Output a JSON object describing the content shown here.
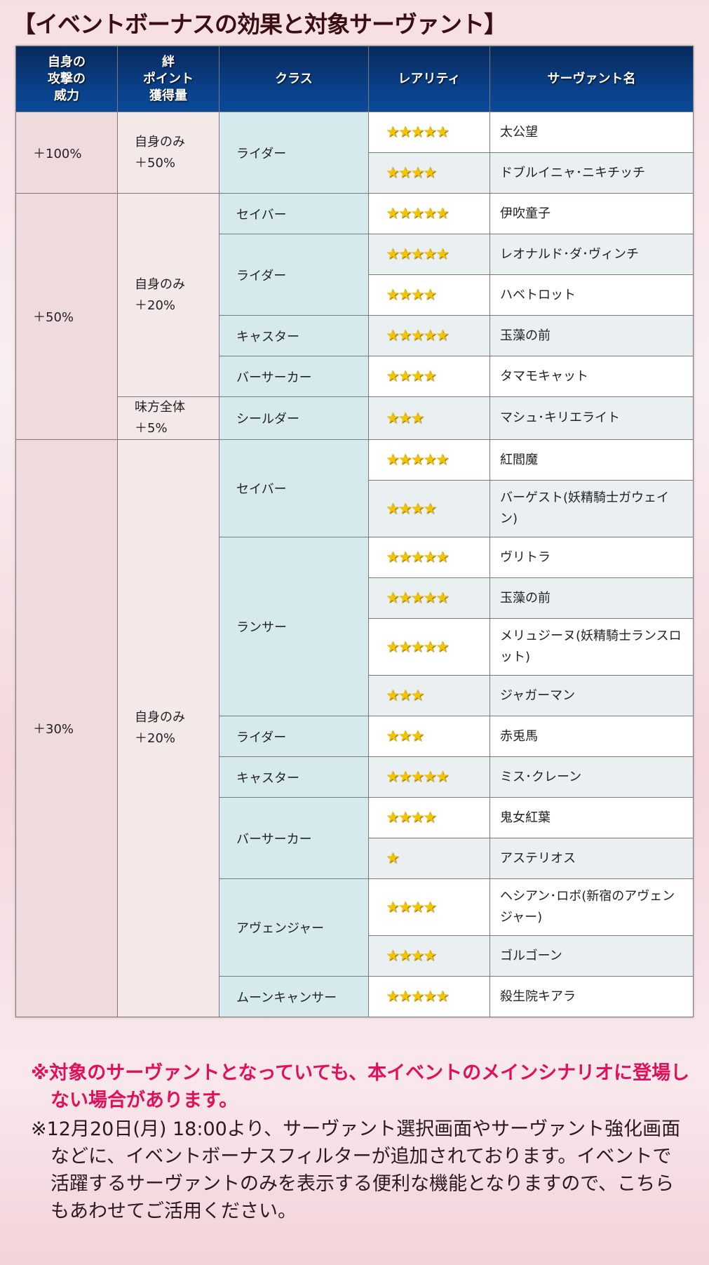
{
  "title": "【イベントボーナスの効果と対象サーヴァント】",
  "headers": {
    "attack": "自身の\n攻撃の\n威力",
    "bond": "絆\nポイント\n獲得量",
    "class": "クラス",
    "rarity": "レアリティ",
    "name": "サーヴァント名"
  },
  "star_icon": "star-icon",
  "colors": {
    "header": "#0a3f86",
    "star": "#f5c400",
    "warning": "#e0105a"
  },
  "groups": [
    {
      "attack": "＋100%",
      "bond_groups": [
        {
          "bond": "自身のみ\n＋50%",
          "classes": [
            {
              "class": "ライダー",
              "servants": [
                {
                  "rarity": 5,
                  "name": "太公望"
                },
                {
                  "rarity": 4,
                  "name": "ドブルイニャ･ニキチッチ"
                }
              ]
            }
          ]
        }
      ]
    },
    {
      "attack": "＋50%",
      "bond_groups": [
        {
          "bond": "自身のみ\n＋20%",
          "classes": [
            {
              "class": "セイバー",
              "servants": [
                {
                  "rarity": 5,
                  "name": "伊吹童子"
                }
              ]
            },
            {
              "class": "ライダー",
              "servants": [
                {
                  "rarity": 5,
                  "name": "レオナルド･ダ･ヴィンチ"
                },
                {
                  "rarity": 4,
                  "name": "ハベトロット"
                }
              ]
            },
            {
              "class": "キャスター",
              "servants": [
                {
                  "rarity": 5,
                  "name": "玉藻の前"
                }
              ]
            },
            {
              "class": "バーサーカー",
              "servants": [
                {
                  "rarity": 4,
                  "name": "タマモキャット"
                }
              ]
            }
          ]
        },
        {
          "bond": "味方全体\n＋5%",
          "classes": [
            {
              "class": "シールダー",
              "servants": [
                {
                  "rarity": 3,
                  "name": "マシュ･キリエライト"
                }
              ]
            }
          ]
        }
      ]
    },
    {
      "attack": "＋30%",
      "bond_groups": [
        {
          "bond": "自身のみ\n＋20%",
          "classes": [
            {
              "class": "セイバー",
              "servants": [
                {
                  "rarity": 5,
                  "name": "紅閻魔"
                },
                {
                  "rarity": 4,
                  "name": "バーゲスト(妖精騎士ガウェイン)"
                }
              ]
            },
            {
              "class": "ランサー",
              "servants": [
                {
                  "rarity": 5,
                  "name": "ヴリトラ"
                },
                {
                  "rarity": 5,
                  "name": "玉藻の前"
                },
                {
                  "rarity": 5,
                  "name": "メリュジーヌ(妖精騎士ランスロット)"
                },
                {
                  "rarity": 3,
                  "name": "ジャガーマン"
                }
              ]
            },
            {
              "class": "ライダー",
              "servants": [
                {
                  "rarity": 3,
                  "name": "赤兎馬"
                }
              ]
            },
            {
              "class": "キャスター",
              "servants": [
                {
                  "rarity": 5,
                  "name": "ミス･クレーン"
                }
              ]
            },
            {
              "class": "バーサーカー",
              "servants": [
                {
                  "rarity": 4,
                  "name": "鬼女紅葉"
                },
                {
                  "rarity": 1,
                  "name": "アステリオス"
                }
              ]
            },
            {
              "class": "アヴェンジャー",
              "servants": [
                {
                  "rarity": 4,
                  "name": "ヘシアン･ロボ(新宿のアヴェンジャー)"
                },
                {
                  "rarity": 4,
                  "name": "ゴルゴーン"
                }
              ]
            },
            {
              "class": "ムーンキャンサー",
              "servants": [
                {
                  "rarity": 5,
                  "name": "殺生院キアラ"
                }
              ]
            }
          ]
        }
      ]
    }
  ],
  "notes": [
    "※対象のサーヴァントとなっていても、本イベントのメインシナリオに登場しない場合があります。",
    "※12月20日(月) 18:00より、サーヴァント選択画面やサーヴァント強化画面などに、イベントボーナスフィルターが追加されております。イベントで活躍するサーヴァントのみを表示する便利な機能となりますので、こちらもあわせてご活用ください。"
  ]
}
